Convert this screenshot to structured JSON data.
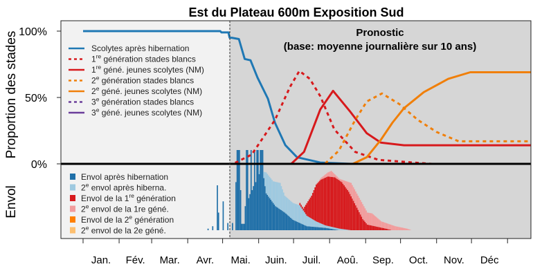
{
  "chart_data": {
    "type": "line",
    "title": "Est du Plateau 600m Exposition Sud",
    "annotation": {
      "line1": "Pronostic",
      "line2": "(base: moyenne journalière sur 10 ans)"
    },
    "ylabel_top": "Proportion des stades",
    "ylabel_bottom": "Envol",
    "yticks": [
      {
        "value": 100,
        "label": "100%"
      },
      {
        "value": 50,
        "label": "50%"
      },
      {
        "value": 0,
        "label": "0%"
      }
    ],
    "x_unit": "day of year",
    "xlim": [
      -19,
      385
    ],
    "forecast_start_day": 126,
    "months": [
      "Jan.",
      "Fév.",
      "Mar.",
      "Avr.",
      "Mai.",
      "Juin.",
      "Juil.",
      "Aoû.",
      "Sep.",
      "Oct.",
      "Nov.",
      "Déc"
    ],
    "month_start_days": [
      0,
      31,
      59,
      90,
      120,
      151,
      181,
      212,
      243,
      273,
      304,
      334,
      365
    ],
    "colors": {
      "blue": "#1f78b4",
      "red": "#d7191c",
      "orange": "#f07f09",
      "purple": "#6a3d9a",
      "past_bg": "#f2f2f2",
      "forecast_bg": "#d6d6d6"
    },
    "series": [
      {
        "name": "Scolytes après hibernation",
        "num": "",
        "sup": "",
        "rest": "Scolytes après hibernation",
        "color": "#1f78b4",
        "dash": false,
        "points": [
          [
            0,
            100
          ],
          [
            118,
            100
          ],
          [
            119,
            99
          ],
          [
            125,
            99
          ],
          [
            126,
            95
          ],
          [
            128,
            95
          ],
          [
            134,
            94
          ],
          [
            139,
            79
          ],
          [
            144,
            78
          ],
          [
            150,
            65
          ],
          [
            159,
            49
          ],
          [
            165,
            31
          ],
          [
            174,
            14
          ],
          [
            184,
            5
          ],
          [
            204,
            1
          ],
          [
            230,
            0
          ],
          [
            385,
            0
          ]
        ]
      },
      {
        "name": "1re génération stades blancs",
        "num": "1",
        "sup": "re",
        "rest": " génération stades blancs",
        "color": "#d7191c",
        "dash": true,
        "points": [
          [
            0,
            0
          ],
          [
            129,
            0
          ],
          [
            145,
            7
          ],
          [
            165,
            33
          ],
          [
            178,
            58
          ],
          [
            186,
            70
          ],
          [
            195,
            64
          ],
          [
            204,
            51
          ],
          [
            216,
            26
          ],
          [
            234,
            9
          ],
          [
            254,
            3
          ],
          [
            284,
            1
          ],
          [
            300,
            0
          ],
          [
            385,
            0
          ]
        ]
      },
      {
        "name": "1re géné. jeunes scolytes (NM)",
        "num": "1",
        "sup": "re",
        "rest": " géné. jeunes scolytes (NM)",
        "color": "#d7191c",
        "dash": false,
        "points": [
          [
            0,
            0
          ],
          [
            179,
            0
          ],
          [
            190,
            9
          ],
          [
            204,
            41
          ],
          [
            215,
            55
          ],
          [
            230,
            39
          ],
          [
            244,
            23
          ],
          [
            256,
            16
          ],
          [
            276,
            14
          ],
          [
            385,
            14
          ]
        ]
      },
      {
        "name": "2e génération stades blancs",
        "num": "2",
        "sup": "e",
        "rest": " génération stades blancs",
        "color": "#f07f09",
        "dash": true,
        "points": [
          [
            0,
            0
          ],
          [
            208,
            0
          ],
          [
            220,
            10
          ],
          [
            234,
            33
          ],
          [
            244,
            47
          ],
          [
            257,
            53
          ],
          [
            272,
            45
          ],
          [
            288,
            33
          ],
          [
            304,
            24
          ],
          [
            323,
            17
          ],
          [
            385,
            17
          ]
        ]
      },
      {
        "name": "2e géné. jeunes scolytes (NM)",
        "num": "2",
        "sup": "e",
        "rest": " géné. jeunes scolytes (NM)",
        "color": "#f07f09",
        "dash": false,
        "points": [
          [
            0,
            0
          ],
          [
            232,
            0
          ],
          [
            244,
            5
          ],
          [
            256,
            18
          ],
          [
            266,
            31
          ],
          [
            276,
            42
          ],
          [
            293,
            54
          ],
          [
            314,
            64
          ],
          [
            333,
            69
          ],
          [
            385,
            69
          ]
        ]
      },
      {
        "name": "3e génération stades blancs",
        "num": "3",
        "sup": "e",
        "rest": " génération stades blancs",
        "color": "#6a3d9a",
        "dash": true,
        "points": []
      },
      {
        "name": "3e géné. jeunes scolytes (NM)",
        "num": "3",
        "sup": "e",
        "rest": " géné. jeunes scolytes (NM)",
        "color": "#6a3d9a",
        "dash": false,
        "points": []
      }
    ],
    "flight_unit": "relative daily flight intensity (0-100, stacked)",
    "flight_legend": [
      {
        "pre": "",
        "num": "",
        "sup": "",
        "rest": "Envol après hibernation",
        "color": "#1f6fa8"
      },
      {
        "pre": "",
        "num": "2",
        "sup": "e",
        "rest": " envol après hiberna.",
        "color": "#9ec9e0"
      },
      {
        "pre": "Envol de la ",
        "num": "1",
        "sup": "re",
        "rest": " génération",
        "color": "#d7191c"
      },
      {
        "pre": "",
        "num": "2",
        "sup": "e",
        "rest": " envol de la 1re géné.",
        "color": "#f29c9c"
      },
      {
        "pre": "Envol de la ",
        "num": "2",
        "sup": "e",
        "rest": " génération",
        "color": "#ff7f00"
      },
      {
        "pre": "",
        "num": "2",
        "sup": "e",
        "rest": " envol de la 2e géné.",
        "color": "#fdbf6f"
      }
    ],
    "flight_early_bars": [
      [
        107,
        2
      ],
      [
        111,
        5
      ],
      [
        115,
        56
      ],
      [
        116,
        22
      ],
      [
        120,
        36
      ],
      [
        124,
        9
      ]
    ],
    "flight_hibernation_spikes": [
      [
        128,
        9
      ],
      [
        131,
        60
      ],
      [
        132,
        100
      ],
      [
        133,
        100
      ],
      [
        134,
        100
      ],
      [
        135,
        50
      ],
      [
        136,
        8
      ],
      [
        137,
        8
      ],
      [
        138,
        8
      ],
      [
        139,
        30
      ],
      [
        140,
        100
      ],
      [
        141,
        100
      ],
      [
        142,
        40
      ],
      [
        143,
        45
      ],
      [
        144,
        100
      ],
      [
        145,
        50
      ],
      [
        146,
        55
      ],
      [
        147,
        100
      ],
      [
        148,
        60
      ],
      [
        149,
        100
      ],
      [
        150,
        100
      ],
      [
        151,
        70
      ],
      [
        152,
        100
      ],
      [
        153,
        100
      ],
      [
        154,
        100
      ],
      [
        155,
        65
      ],
      [
        156,
        55
      ]
    ],
    "flight_envelopes": {
      "envol_hibernation": [
        [
          156,
          50
        ],
        [
          157,
          46
        ],
        [
          165,
          30
        ],
        [
          173,
          22
        ],
        [
          180,
          13
        ],
        [
          192,
          5
        ],
        [
          208,
          3
        ],
        [
          220,
          0
        ]
      ],
      "second_envol_hibernation_cum": [
        [
          140,
          0
        ],
        [
          150,
          75
        ],
        [
          157,
          72
        ],
        [
          163,
          61
        ],
        [
          169,
          59
        ],
        [
          173,
          43
        ],
        [
          180,
          34
        ],
        [
          186,
          31
        ],
        [
          192,
          18
        ],
        [
          200,
          11
        ],
        [
          208,
          6
        ],
        [
          220,
          2
        ],
        [
          230,
          0
        ]
      ],
      "envol_1re_generation_cum": [
        [
          180,
          0
        ],
        [
          186,
          34
        ],
        [
          189,
          27
        ],
        [
          196,
          43
        ],
        [
          200,
          57
        ],
        [
          204,
          63
        ],
        [
          210,
          67
        ],
        [
          216,
          66
        ],
        [
          222,
          60
        ],
        [
          228,
          48
        ],
        [
          234,
          31
        ],
        [
          240,
          14
        ],
        [
          244,
          7
        ],
        [
          260,
          2
        ],
        [
          265,
          0
        ]
      ],
      "second_envol_1re_gene_cum": [
        [
          200,
          57
        ],
        [
          204,
          65
        ],
        [
          210,
          72
        ],
        [
          213,
          74
        ],
        [
          220,
          64
        ],
        [
          230,
          59
        ],
        [
          236,
          43
        ],
        [
          244,
          22
        ],
        [
          248,
          21
        ],
        [
          256,
          11
        ],
        [
          268,
          5
        ],
        [
          278,
          2
        ],
        [
          282,
          0
        ]
      ]
    }
  }
}
